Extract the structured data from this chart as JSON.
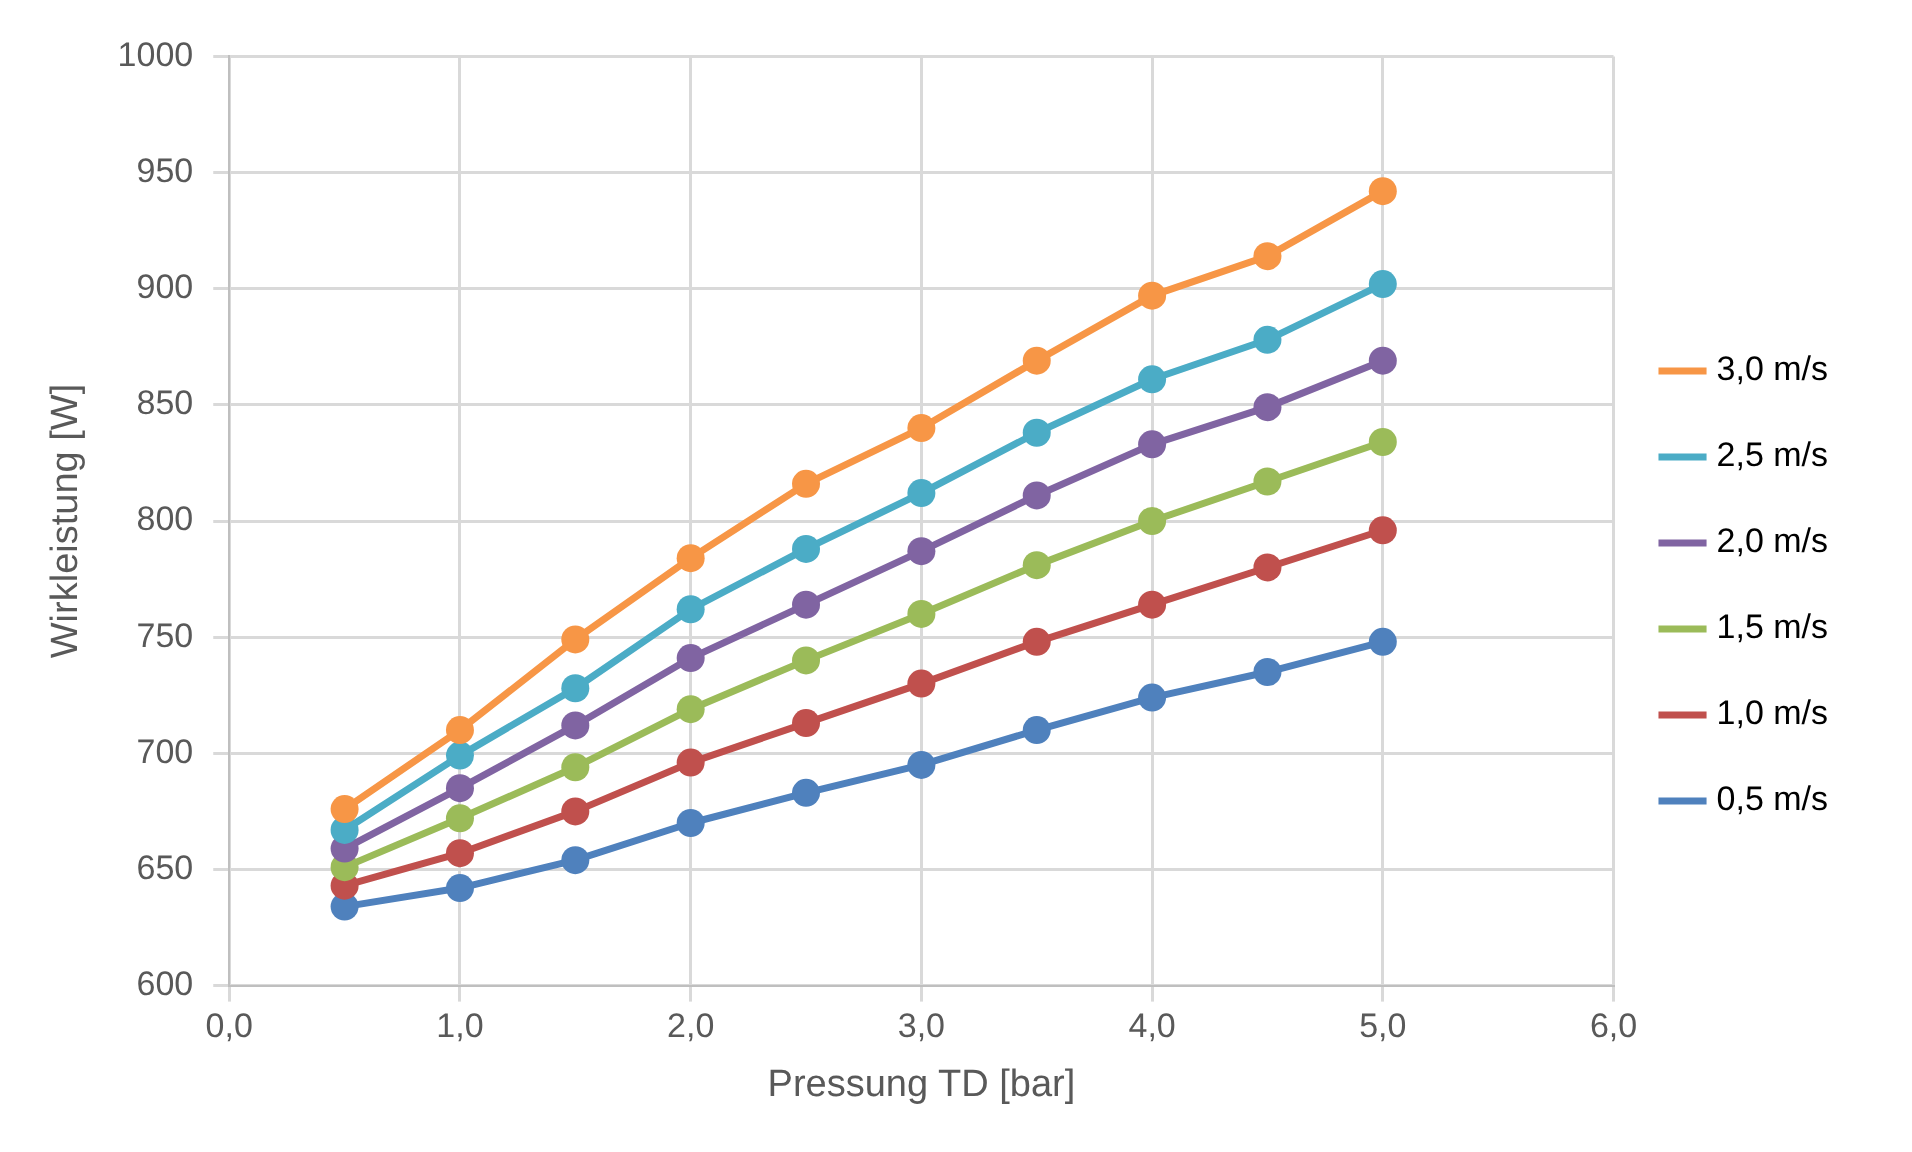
{
  "chart_data": {
    "type": "line",
    "xlabel": "Pressung TD [bar]",
    "ylabel": "Wirkleistung [W]",
    "x": [
      0.5,
      1.0,
      1.5,
      2.0,
      2.5,
      3.0,
      3.5,
      4.0,
      4.5,
      5.0
    ],
    "series": [
      {
        "name": "3,0 m/s",
        "color": "#f79646",
        "values": [
          676,
          710,
          749,
          784,
          816,
          840,
          869,
          897,
          914,
          942
        ]
      },
      {
        "name": "2,5 m/s",
        "color": "#4bacc6",
        "values": [
          667,
          699,
          728,
          762,
          788,
          812,
          838,
          861,
          878,
          902
        ]
      },
      {
        "name": "2,0 m/s",
        "color": "#8064a2",
        "values": [
          659,
          685,
          712,
          741,
          764,
          787,
          811,
          833,
          849,
          869
        ]
      },
      {
        "name": "1,5 m/s",
        "color": "#9bbb59",
        "values": [
          651,
          672,
          694,
          719,
          740,
          760,
          781,
          800,
          817,
          834
        ]
      },
      {
        "name": "1,0 m/s",
        "color": "#c0504d",
        "values": [
          643,
          657,
          675,
          696,
          713,
          730,
          748,
          764,
          780,
          796
        ]
      },
      {
        "name": "0,5 m/s",
        "color": "#4f81bd",
        "values": [
          634,
          642,
          654,
          670,
          683,
          695,
          710,
          724,
          735,
          748
        ]
      }
    ],
    "xlim": [
      0,
      6
    ],
    "xticks": [
      {
        "value": 0,
        "label": "0,0"
      },
      {
        "value": 1,
        "label": "1,0"
      },
      {
        "value": 2,
        "label": "2,0"
      },
      {
        "value": 3,
        "label": "3,0"
      },
      {
        "value": 4,
        "label": "4,0"
      },
      {
        "value": 5,
        "label": "5,0"
      },
      {
        "value": 6,
        "label": "6,0"
      }
    ],
    "ylim": [
      600,
      1000
    ],
    "yticks": [
      600,
      650,
      700,
      750,
      800,
      850,
      900,
      950,
      1000
    ],
    "grid": true,
    "legend": "right",
    "marker": "circle",
    "line_style": "solid"
  }
}
